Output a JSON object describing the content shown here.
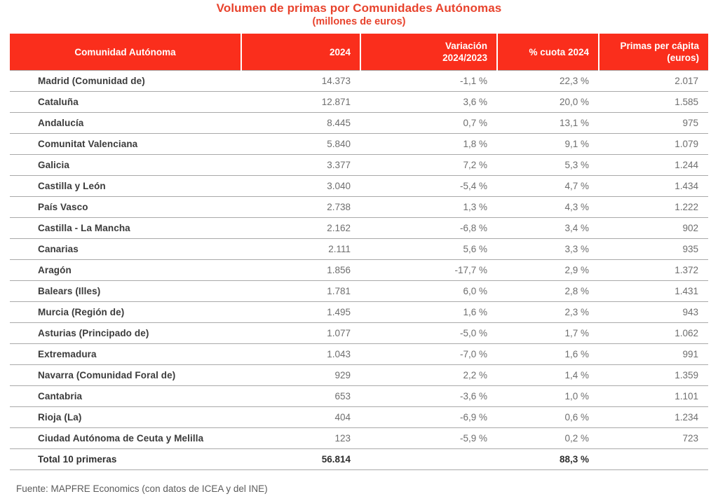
{
  "page": {
    "source": "Fuente: MAPFRE Economics (con datos de ICEA y del INE)"
  },
  "colors": {
    "header_background": "#fa2e1c",
    "title_text": "#e8432d",
    "header_text": "#ffffff",
    "region_text": "#3b3b3b",
    "value_text": "#6e6e6e",
    "separator_line": "#a9a9a9"
  },
  "chart_data": {
    "type": "table",
    "title": "Volumen de primas por Comunidades Autónomas",
    "subtitle": "(millones de euros)",
    "columns": [
      "Comunidad Autónoma",
      "2024",
      "Variación\n2024/2023",
      "% cuota 2024",
      "Primas per cápita\n(euros)"
    ],
    "rows": [
      [
        "Madrid (Comunidad de)",
        "14.373",
        "-1,1 %",
        "22,3 %",
        "2.017"
      ],
      [
        "Cataluña",
        "12.871",
        "3,6 %",
        "20,0 %",
        "1.585"
      ],
      [
        "Andalucía",
        "8.445",
        "0,7 %",
        "13,1 %",
        "975"
      ],
      [
        "Comunitat Valenciana",
        "5.840",
        "1,8 %",
        "9,1 %",
        "1.079"
      ],
      [
        "Galicia",
        "3.377",
        "7,2 %",
        "5,3 %",
        "1.244"
      ],
      [
        "Castilla y León",
        "3.040",
        "-5,4 %",
        "4,7 %",
        "1.434"
      ],
      [
        "País Vasco",
        "2.738",
        "1,3 %",
        "4,3 %",
        "1.222"
      ],
      [
        "Castilla - La Mancha",
        "2.162",
        "-6,8 %",
        "3,4 %",
        "902"
      ],
      [
        "Canarias",
        "2.111",
        "5,6 %",
        "3,3 %",
        "935"
      ],
      [
        "Aragón",
        "1.856",
        "-17,7 %",
        "2,9 %",
        "1.372"
      ],
      [
        "Balears (Illes)",
        "1.781",
        "6,0 %",
        "2,8 %",
        "1.431"
      ],
      [
        "Murcia (Región de)",
        "1.495",
        "1,6 %",
        "2,3 %",
        "943"
      ],
      [
        "Asturias (Principado de)",
        "1.077",
        "-5,0 %",
        "1,7 %",
        "1.062"
      ],
      [
        "Extremadura",
        "1.043",
        "-7,0 %",
        "1,6 %",
        "991"
      ],
      [
        "Navarra (Comunidad Foral de)",
        "929",
        "2,2 %",
        "1,4 %",
        "1.359"
      ],
      [
        "Cantabria",
        "653",
        "-3,6 %",
        "1,0 %",
        "1.101"
      ],
      [
        "Rioja (La)",
        "404",
        "-6,9 %",
        "0,6 %",
        "1.234"
      ],
      [
        "Ciudad Autónoma de Ceuta y Melilla",
        "123",
        "-5,9 %",
        "0,2 %",
        "723"
      ]
    ],
    "total_row": [
      "Total 10 primeras",
      "56.814",
      "",
      "88,3 %",
      ""
    ]
  }
}
